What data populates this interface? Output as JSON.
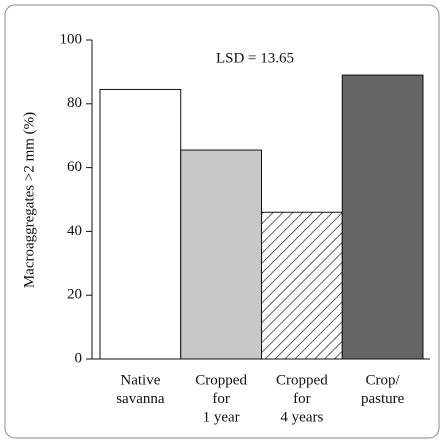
{
  "chart_data": {
    "type": "bar",
    "ylabel": "Macroaggregates >2 mm (%)",
    "annotation": "LSD = 13.65",
    "categories": [
      [
        "Native",
        "savanna"
      ],
      [
        "Cropped",
        "for",
        "1 year"
      ],
      [
        "Cropped",
        "for",
        "4 years"
      ],
      [
        "Crop/",
        "pasture"
      ]
    ],
    "values": [
      84.5,
      65.5,
      46,
      89
    ],
    "colors": [
      "#ffffff",
      "#c8c8c8",
      "#ffffff",
      "#666666"
    ],
    "hatch": [
      false,
      false,
      true,
      false
    ],
    "ylim": [
      0,
      100
    ],
    "yticks": [
      0,
      20,
      40,
      60,
      80,
      100
    ],
    "grid": false
  }
}
